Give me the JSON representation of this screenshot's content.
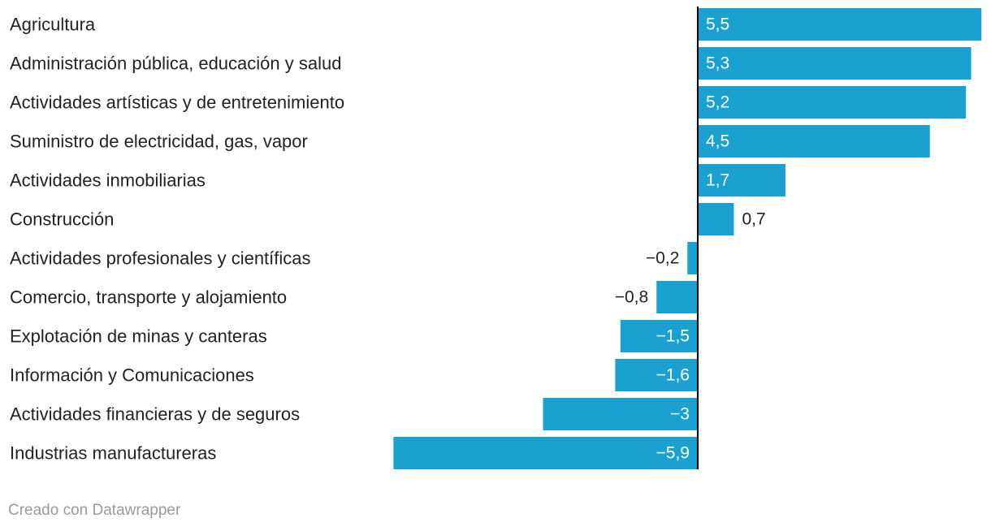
{
  "chart_data": {
    "type": "bar",
    "orientation": "horizontal",
    "categories": [
      "Agricultura",
      "Administración pública, educación y salud",
      "Actividades artísticas y de entretenimiento",
      "Suministro de electricidad, gas, vapor",
      "Actividades inmobiliarias",
      "Construcción",
      "Actividades profesionales y científicas",
      "Comercio, transporte y alojamiento",
      "Explotación de minas y canteras",
      "Información y Comunicaciones",
      "Actividades financieras y de seguros",
      "Industrias manufactureras"
    ],
    "values": [
      5.5,
      5.3,
      5.2,
      4.5,
      1.7,
      0.7,
      -0.2,
      -0.8,
      -1.5,
      -1.6,
      -3,
      -5.9
    ],
    "value_labels": [
      "5,5",
      "5,3",
      "5,2",
      "4,5",
      "1,7",
      "0,7",
      "−0,2",
      "−0,8",
      "−1,5",
      "−1,6",
      "−3",
      "−5,9"
    ],
    "xlim": [
      -5.9,
      5.5
    ],
    "grid": false,
    "bar_color": "#1aa1d0",
    "label_inside_color": "#ffffff",
    "label_outside_color": "#222222",
    "axis_color": "#000000"
  },
  "footer": {
    "credit": "Creado con Datawrapper"
  }
}
